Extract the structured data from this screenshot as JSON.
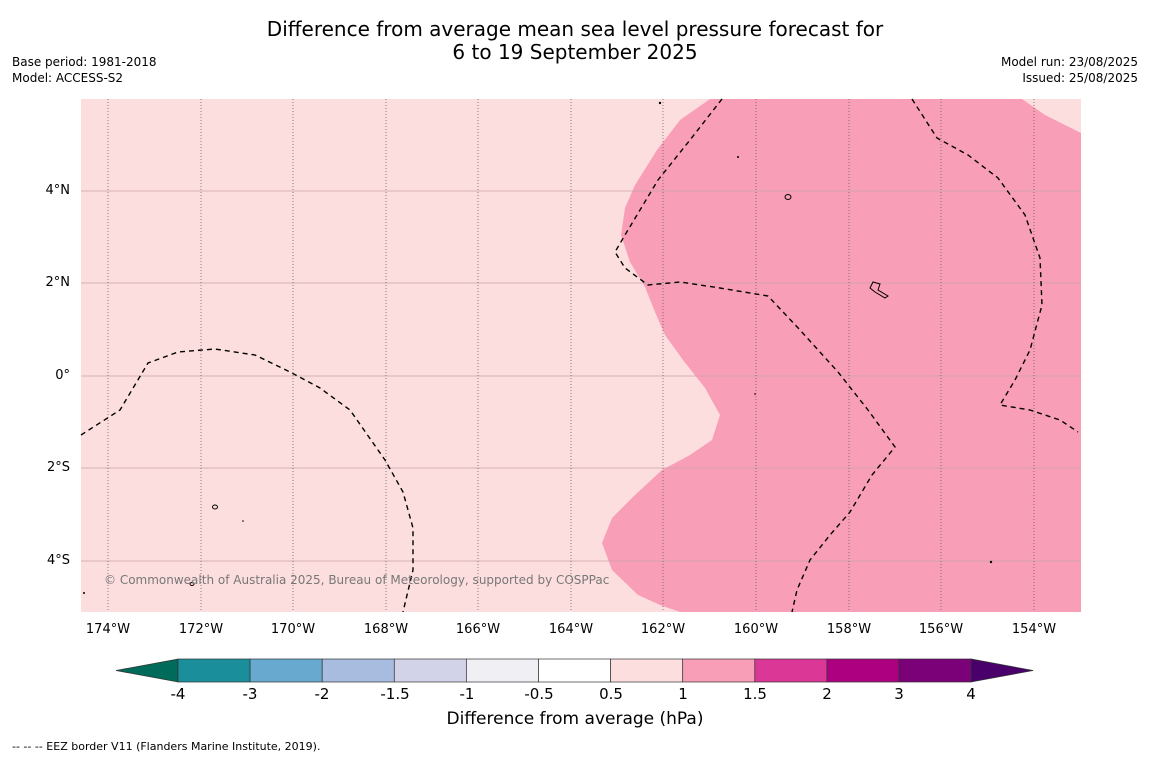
{
  "title": {
    "line1": "Difference from average mean sea level pressure forecast for",
    "line2": "6 to 19 September 2025"
  },
  "meta_left": {
    "base_period": "Base period: 1981-2018",
    "model": "Model: ACCESS-S2"
  },
  "meta_right": {
    "model_run": "Model run: 23/08/2025",
    "issued": "Issued: 25/08/2025"
  },
  "copyright": "© Commonwealth of Australia 2025, Bureau of Meteorology, supported by COSPPac",
  "map": {
    "lat_labels": [
      "4°N",
      "2°N",
      "0°",
      "2°S",
      "4°S"
    ],
    "lon_labels": [
      "174°W",
      "172°W",
      "170°W",
      "168°W",
      "166°W",
      "164°W",
      "162°W",
      "160°W",
      "158°W",
      "156°W",
      "154°W"
    ],
    "region_colors": {
      "light": "#fddede",
      "medium": "#f99eb7"
    }
  },
  "colorbar": {
    "labels": [
      "-4",
      "-3",
      "-2",
      "-1.5",
      "-1",
      "-0.5",
      "0.5",
      "1",
      "1.5",
      "2",
      "3",
      "4"
    ],
    "colors": [
      "#006a5b",
      "#1a8f9b",
      "#68a9d0",
      "#a8bcdf",
      "#d2d3e9",
      "#f0eff3",
      "#ffffff",
      "#fddede",
      "#f99eb7",
      "#db3797",
      "#ad0080",
      "#7a0177",
      "#49006a"
    ],
    "title": "Difference from average (hPa)"
  },
  "footnote": "--  --  -- EEZ border V11 (Flanders Marine Institute, 2019)."
}
